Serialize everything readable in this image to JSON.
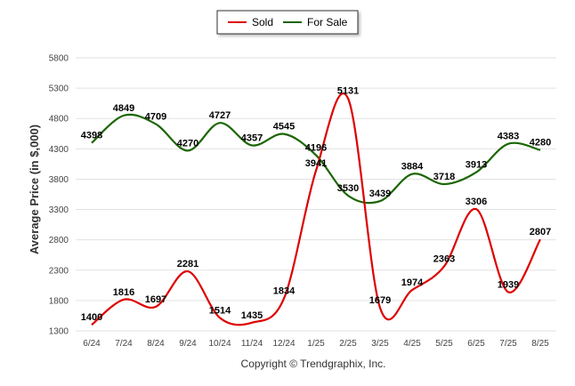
{
  "chart_data": {
    "type": "line",
    "categories": [
      "6/24",
      "7/24",
      "8/24",
      "9/24",
      "10/24",
      "11/24",
      "12/24",
      "1/25",
      "2/25",
      "3/25",
      "4/25",
      "5/25",
      "6/25",
      "7/25",
      "8/25"
    ],
    "series": [
      {
        "name": "Sold",
        "color": "#dd0000",
        "values": [
          1400,
          1816,
          1697,
          2281,
          1514,
          1435,
          1834,
          3941,
          5131,
          1679,
          1974,
          2363,
          3306,
          1939,
          2807
        ]
      },
      {
        "name": "For Sale",
        "color": "#1a6600",
        "values": [
          4398,
          4849,
          4709,
          4270,
          4727,
          4357,
          4545,
          4196,
          3530,
          3439,
          3884,
          3718,
          3913,
          4383,
          4280
        ]
      }
    ],
    "ylabel": "Average Price (in $,000)",
    "ylim": [
      1300,
      5800
    ],
    "yticks": [
      1300,
      1800,
      2300,
      2800,
      3300,
      3800,
      4300,
      4800,
      5300,
      5800
    ],
    "grid": true,
    "legend_position": "top-center"
  },
  "footer": {
    "copyright": "Copyright © Trendgraphix, Inc."
  }
}
